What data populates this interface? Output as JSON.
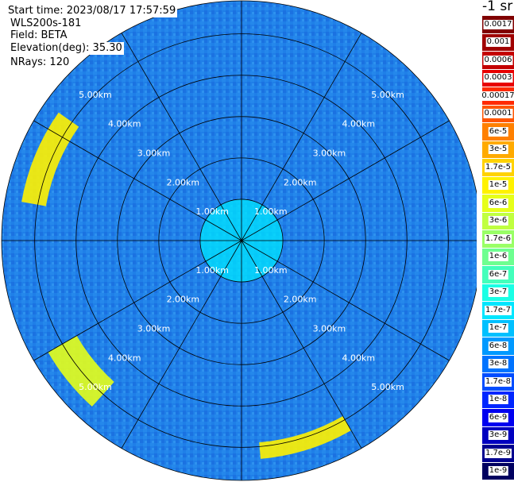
{
  "info": {
    "start_time": "Start time: 2023/08/17 17:57:59",
    "instrument": "WLS200s-181",
    "field": "Field: BETA",
    "elevation": "Elevation(deg): 35.30",
    "nrays": "NRays: 120"
  },
  "colorbar": {
    "units": "-1 sr",
    "labels": [
      "0.0017",
      "0.001",
      "0.0006",
      "0.0003",
      "0.00017",
      "0.0001",
      "6e-5",
      "3e-5",
      "1.7e-5",
      "1e-5",
      "6e-6",
      "3e-6",
      "1.7e-6",
      "1e-6",
      "6e-7",
      "3e-7",
      "1.7e-7",
      "1e-7",
      "6e-8",
      "3e-8",
      "1.7e-8",
      "1e-8",
      "6e-9",
      "3e-9",
      "1.7e-9",
      "1e-9"
    ],
    "colors": [
      "#800000",
      "#a00000",
      "#c40000",
      "#e80000",
      "#ff2a00",
      "#ff5500",
      "#ff8000",
      "#ffaa00",
      "#ffd200",
      "#fff200",
      "#e6ff1a",
      "#c0ff40",
      "#99ff66",
      "#6eff90",
      "#44ffbb",
      "#1affe5",
      "#00e6ff",
      "#00c0ff",
      "#0099ff",
      "#0073ff",
      "#004dff",
      "#0026ff",
      "#0000f0",
      "#0000c0",
      "#00008f",
      "#000060"
    ]
  },
  "chart_data": {
    "type": "heatmap",
    "projection": "polar PPI",
    "field": "BETA",
    "elevation_deg": 35.3,
    "n_rays": 120,
    "max_range_km": 5.8,
    "range_rings_km": [
      1,
      2,
      3,
      4,
      5
    ],
    "ring_labels": [
      "1.00km",
      "2.00km",
      "3.00km",
      "4.00km",
      "5.00km"
    ],
    "azimuth_lines_deg": [
      0,
      30,
      60,
      90,
      120,
      150,
      180,
      210,
      240,
      270,
      300,
      330
    ],
    "color_scale": "log",
    "value_range": [
      1e-09,
      0.0017
    ],
    "background_level": "3e-8",
    "features": [
      {
        "description": "enhanced backscatter arc",
        "azimuth_start_deg": 280,
        "azimuth_end_deg": 305,
        "range_km": [
          4.8,
          5.4
        ],
        "level": "1e-5"
      },
      {
        "description": "enhanced backscatter arc",
        "azimuth_start_deg": 222,
        "azimuth_end_deg": 240,
        "range_km": [
          4.6,
          5.4
        ],
        "level": "6e-6"
      },
      {
        "description": "enhanced backscatter arc",
        "azimuth_start_deg": 150,
        "azimuth_end_deg": 175,
        "range_km": [
          4.9,
          5.3
        ],
        "level": "1e-5"
      },
      {
        "description": "near-range enhanced returns",
        "range_km": [
          0,
          1.0
        ],
        "level": "1.7e-7"
      }
    ]
  }
}
